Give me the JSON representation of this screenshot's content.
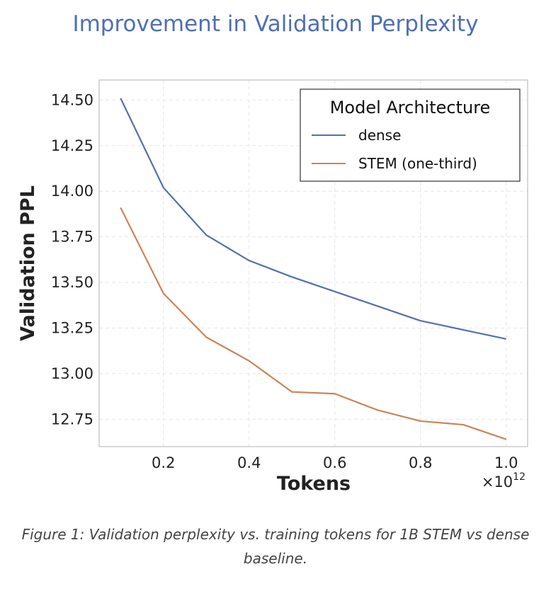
{
  "page_title": "Improvement in Validation Perplexity",
  "caption": "Figure 1: Validation perplexity vs. training tokens for 1B STEM vs dense baseline.",
  "chart_data": {
    "type": "line",
    "title": "Improvement in Validation Perplexity",
    "xlabel": "Tokens",
    "ylabel": "Validation PPL",
    "x_scale_label": "×10",
    "x_scale_exponent": "12",
    "x": [
      0.1,
      0.2,
      0.3,
      0.4,
      0.5,
      0.6,
      0.7,
      0.8,
      0.9,
      1.0
    ],
    "x_ticks": [
      0.2,
      0.4,
      0.6,
      0.8,
      1.0
    ],
    "x_tick_labels": [
      "0.2",
      "0.4",
      "0.6",
      "0.8",
      "1.0"
    ],
    "y_ticks": [
      12.75,
      13.0,
      13.25,
      13.5,
      13.75,
      14.0,
      14.25,
      14.5
    ],
    "y_tick_labels": [
      "12.75",
      "13.00",
      "13.25",
      "13.50",
      "13.75",
      "14.00",
      "14.25",
      "14.50"
    ],
    "xlim": [
      0.05,
      1.05
    ],
    "ylim": [
      12.6,
      14.61
    ],
    "grid": true,
    "legend": {
      "title": "Model Architecture",
      "position": "top-right"
    },
    "series": [
      {
        "name": "dense",
        "color": "#5470ad",
        "values": [
          14.51,
          14.02,
          13.76,
          13.62,
          13.53,
          13.45,
          13.37,
          13.29,
          13.24,
          13.19
        ]
      },
      {
        "name": "STEM (one-third)",
        "color": "#cc8458",
        "values": [
          13.91,
          13.44,
          13.2,
          13.07,
          12.9,
          12.89,
          12.8,
          12.74,
          12.72,
          12.64
        ]
      }
    ]
  }
}
